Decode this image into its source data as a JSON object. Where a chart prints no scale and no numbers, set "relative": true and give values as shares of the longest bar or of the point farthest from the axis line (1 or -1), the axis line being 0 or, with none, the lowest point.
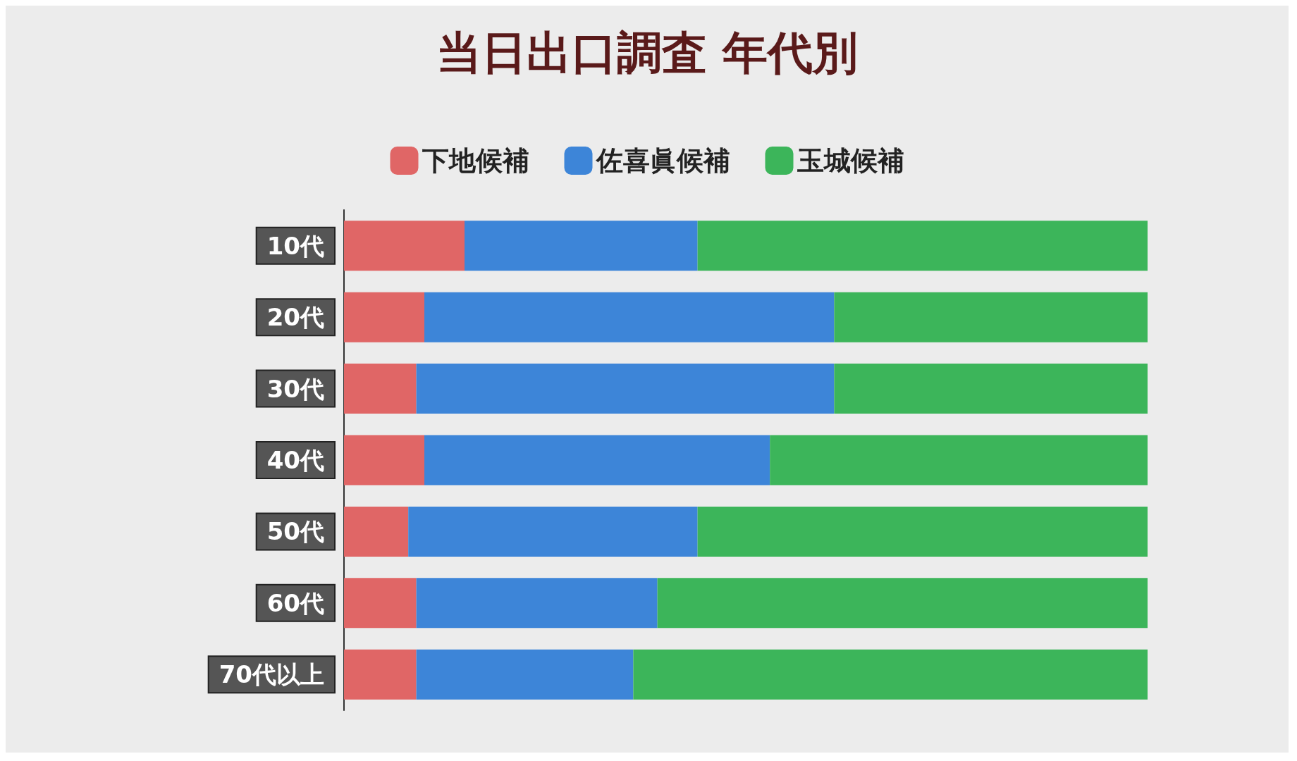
{
  "chart_data": {
    "type": "bar",
    "title": "当日出口調査 年代別",
    "orientation": "horizontal",
    "stacked": true,
    "relative": true,
    "legend": "top",
    "categories": [
      "10代",
      "20代",
      "30代",
      "40代",
      "50代",
      "60代",
      "70代以上"
    ],
    "series": [
      {
        "name": "下地候補",
        "color": "#e06666",
        "values": [
          0.15,
          0.1,
          0.09,
          0.1,
          0.08,
          0.09,
          0.09
        ]
      },
      {
        "name": "佐喜眞候補",
        "color": "#3d85d8",
        "values": [
          0.29,
          0.51,
          0.52,
          0.43,
          0.36,
          0.3,
          0.27
        ]
      },
      {
        "name": "玉城候補",
        "color": "#3cb55a",
        "values": [
          0.56,
          0.39,
          0.39,
          0.47,
          0.56,
          0.61,
          0.64
        ]
      }
    ]
  }
}
